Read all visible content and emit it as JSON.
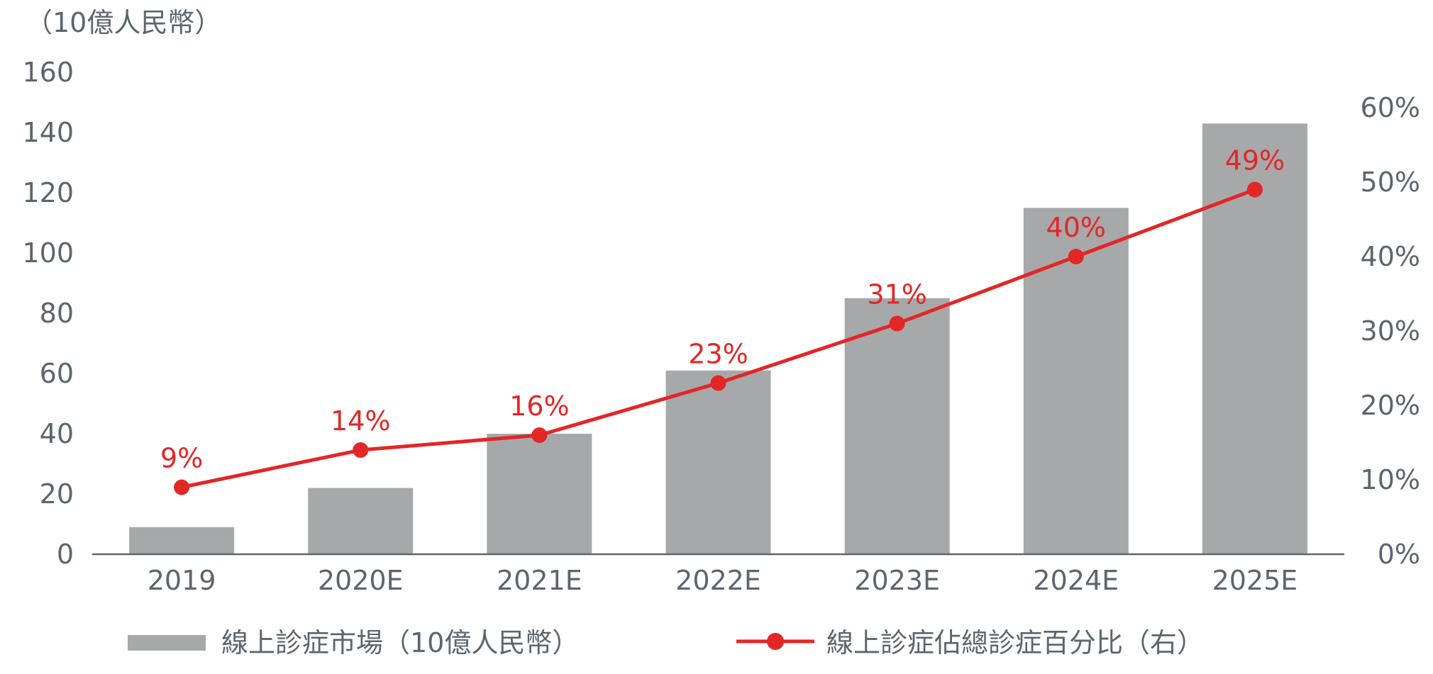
{
  "chart_data": {
    "type": "bar",
    "categories": [
      "2019",
      "2020E",
      "2021E",
      "2022E",
      "2023E",
      "2024E",
      "2025E"
    ],
    "series": [
      {
        "name": "線上診症市場（10億人民幣）",
        "type": "bar",
        "axis": "left",
        "values": [
          9,
          22,
          40,
          61,
          85,
          115,
          143
        ]
      },
      {
        "name": "線上診症佔總診症百分比（右）",
        "type": "line",
        "axis": "right",
        "values": [
          9,
          14,
          16,
          23,
          31,
          40,
          49
        ],
        "data_labels": [
          "9%",
          "14%",
          "16%",
          "23%",
          "31%",
          "40%",
          "49%"
        ]
      }
    ],
    "y_left_unit": "（10億人民幣）",
    "ylim_left": [
      0,
      160
    ],
    "y_left_ticks": [
      "0",
      "20",
      "40",
      "60",
      "80",
      "100",
      "120",
      "140",
      "160"
    ],
    "ylim_right": [
      0,
      60
    ],
    "y_right_ticks": [
      "0%",
      "10%",
      "20%",
      "30%",
      "40%",
      "50%",
      "60%"
    ],
    "grid": false,
    "legend_position": "bottom",
    "colors": {
      "bar": "#a7a8aa",
      "line": "#e32626",
      "axis": "#5a6670",
      "text": "#5a6670"
    }
  }
}
